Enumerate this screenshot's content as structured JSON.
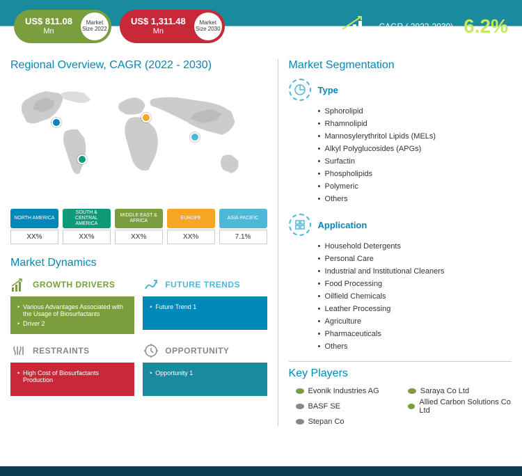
{
  "header": {
    "pill1": {
      "value": "US$ 811.08",
      "unit": "Mn",
      "label": "Market Size 2022",
      "bg": "#7a9e3e"
    },
    "pill2": {
      "value": "US$ 1,311.48",
      "unit": "Mn",
      "label": "Market Size 2030",
      "bg": "#c92838"
    },
    "cagr_label": "CAGR ( 2022-2030)",
    "cagr_value": "6.2%"
  },
  "regional": {
    "title": "Regional Overview, CAGR (2022 - 2030)",
    "map_color": "#cccccc",
    "markers": [
      {
        "x": 16,
        "y": 32,
        "color": "#0088b8"
      },
      {
        "x": 26,
        "y": 62,
        "color": "#0d9b7a"
      },
      {
        "x": 51,
        "y": 28,
        "color": "#f5a623"
      },
      {
        "x": 70,
        "y": 44,
        "color": "#4db8d8"
      }
    ],
    "regions": [
      {
        "name": "NORTH AMERICA",
        "val": "XX%",
        "bg": "#0088b8"
      },
      {
        "name": "SOUTH & CENTRAL AMERICA",
        "val": "XX%",
        "bg": "#0d9b7a"
      },
      {
        "name": "MIDDLE EAST & AFRICA",
        "val": "XX%",
        "bg": "#7a9e3e"
      },
      {
        "name": "EUROPE",
        "val": "XX%",
        "bg": "#f5a623"
      },
      {
        "name": "ASIA PACIFIC",
        "val": "7.1%",
        "bg": "#4db8d8"
      }
    ]
  },
  "dynamics": {
    "title": "Market Dynamics",
    "boxes": [
      {
        "title": "GROWTH DRIVERS",
        "title_color": "#7a9e3e",
        "body_bg": "#7a9e3e",
        "items": [
          "Various Advantages Associated with the Usage of Biosurfactants",
          "Driver 2"
        ]
      },
      {
        "title": "FUTURE TRENDS",
        "title_color": "#4db8d8",
        "body_bg": "#0088b8",
        "items": [
          "Future Trend 1"
        ]
      },
      {
        "title": "RESTRAINTS",
        "title_color": "#888",
        "body_bg": "#c92838",
        "items": [
          "High Cost of Biosurfactants Production"
        ]
      },
      {
        "title": "OPPORTUNITY",
        "title_color": "#888",
        "body_bg": "#1a8a9e",
        "items": [
          "Opportunity 1"
        ]
      }
    ]
  },
  "segmentation": {
    "title": "Market Segmentation",
    "sections": [
      {
        "title": "Type",
        "items": [
          "Sphorolipid",
          "Rhamnolipid",
          "Mannosylerythritol Lipids (MELs)",
          "Alkyl Polyglucosides (APGs)",
          "Surfactin",
          "Phospholipids",
          "Polymeric",
          "Others"
        ]
      },
      {
        "title": "Application",
        "items": [
          "Household Detergents",
          "Personal Care",
          "Industrial and Institutional Cleaners",
          "Food Processing",
          "Oilfield Chemicals",
          "Leather Processing",
          "Agriculture",
          "Pharmaceuticals",
          "Others"
        ]
      }
    ]
  },
  "players": {
    "title": "Key Players",
    "items": [
      {
        "name": "Evonik Industries AG",
        "color": "#7a9e3e"
      },
      {
        "name": "Saraya Co Ltd",
        "color": "#7a9e3e"
      },
      {
        "name": "BASF SE",
        "color": "#888"
      },
      {
        "name": "Allied Carbon Solutions Co Ltd",
        "color": "#7a9e3e"
      },
      {
        "name": "Stepan Co",
        "color": "#888"
      }
    ]
  }
}
